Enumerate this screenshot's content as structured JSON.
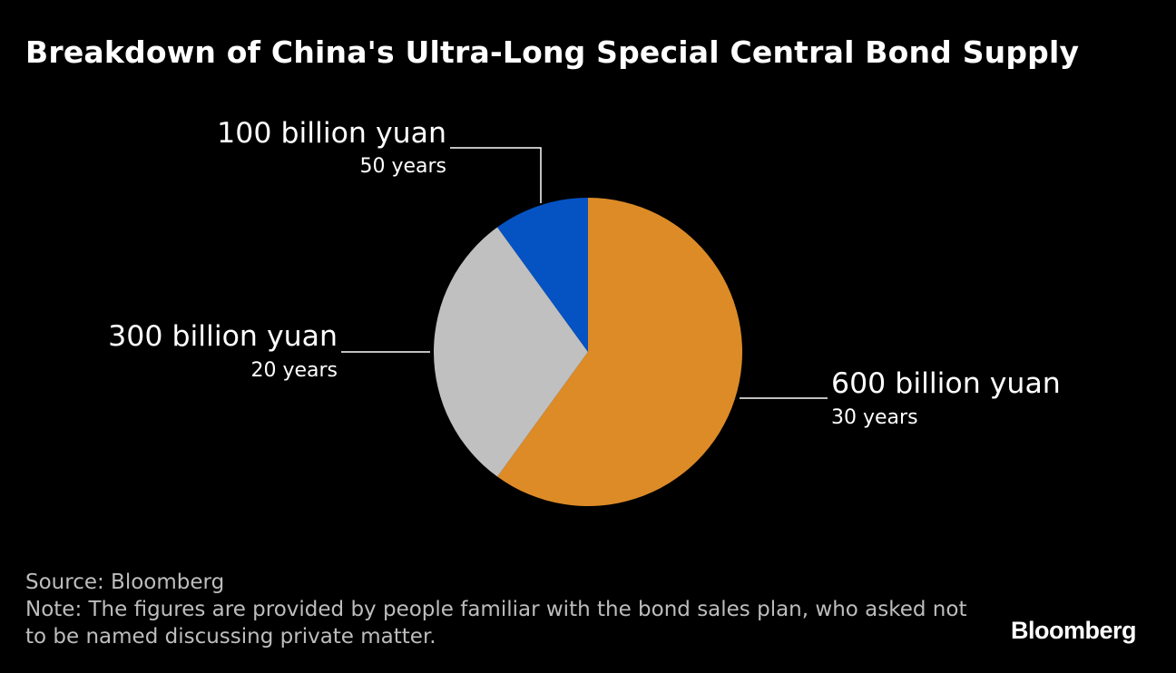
{
  "title": "Breakdown of China's Ultra-Long Special Central Bond Supply",
  "chart_data": {
    "type": "pie",
    "title": "Breakdown of China's Ultra-Long Special Central Bond Supply",
    "unit": "billion yuan",
    "slices": [
      {
        "label": "600 billion yuan",
        "sublabel": "30 years",
        "value": 600,
        "color": "#dd8b27"
      },
      {
        "label": "300 billion yuan",
        "sublabel": "20 years",
        "value": 300,
        "color": "#c0c0c0"
      },
      {
        "label": "100 billion yuan",
        "sublabel": "50 years",
        "value": 100,
        "color": "#0553c3"
      }
    ],
    "start_angle": "12 o'clock",
    "direction": "clockwise"
  },
  "footer": {
    "source": "Source: Bloomberg",
    "note": "Note: The figures are provided by people familiar with the bond sales plan, who asked not to be named discussing private matter."
  },
  "logo": "Bloomberg",
  "colors": {
    "background": "#000000",
    "text": "#ffffff",
    "footer_text": "#bdbdbd",
    "leader_line": "#ffffff"
  }
}
